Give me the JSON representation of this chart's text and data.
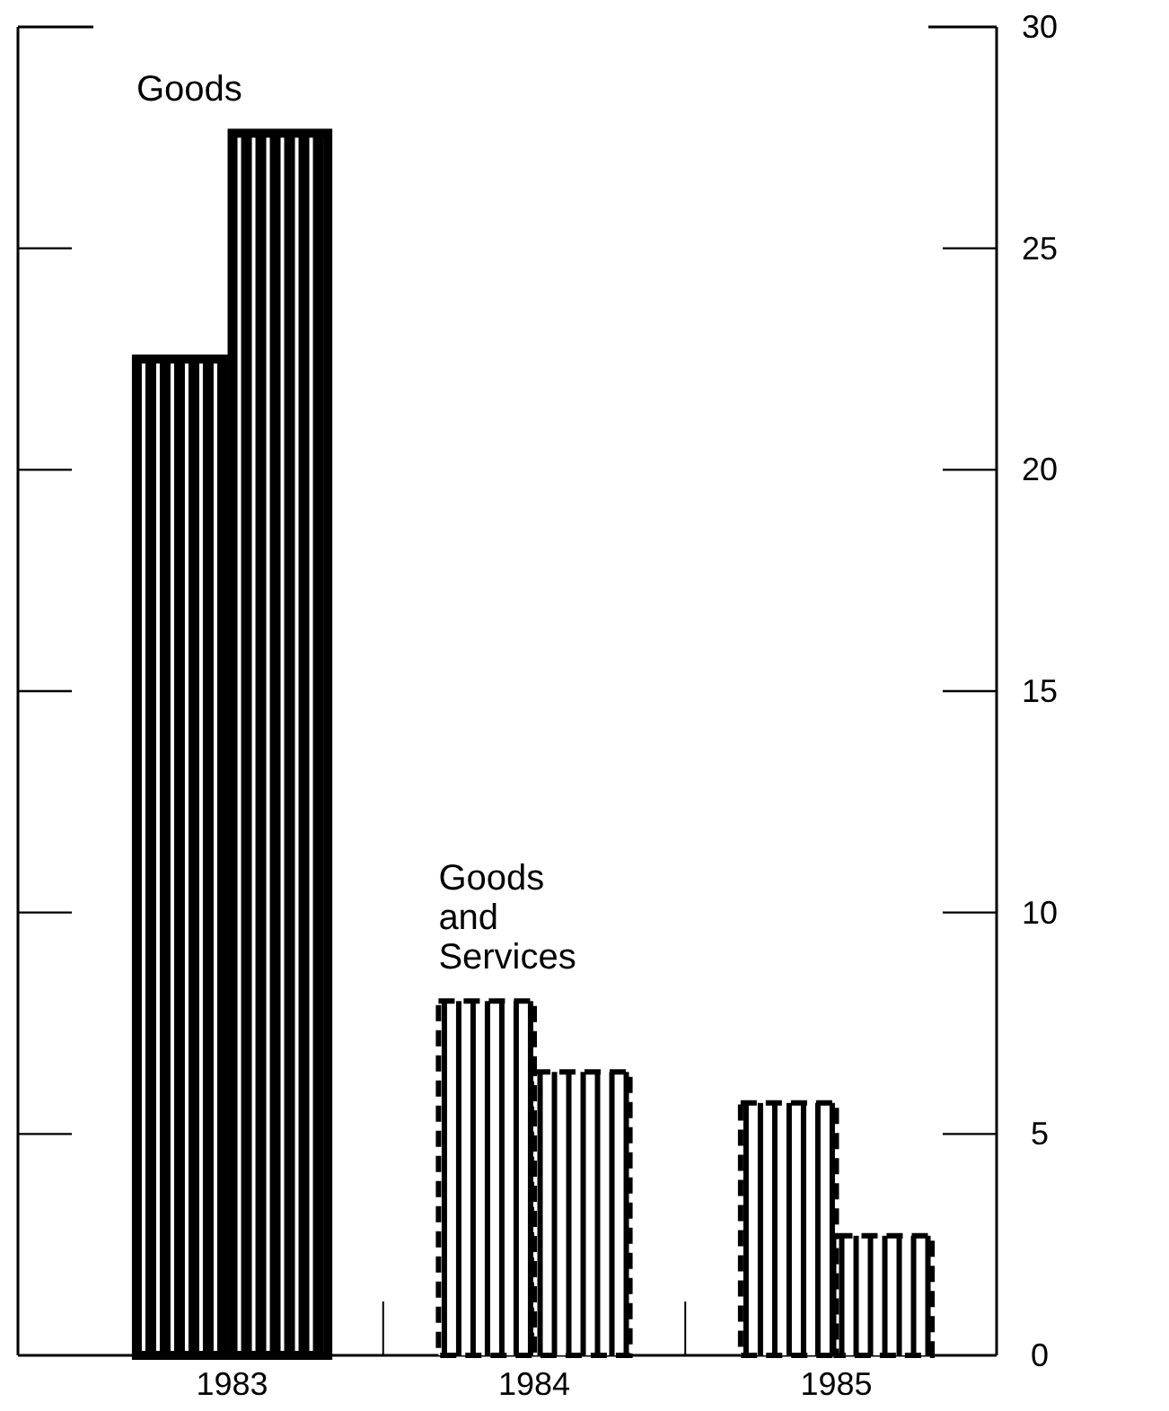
{
  "chart_data": {
    "type": "bar",
    "categories": [
      "1983",
      "1984",
      "1985"
    ],
    "series": [
      {
        "color": "#000000",
        "values": [
          22.5,
          null,
          null
        ]
      },
      {
        "color": "#000000",
        "values": [
          27.6,
          null,
          null
        ]
      },
      {
        "color": "#000000",
        "line_style": "dashed",
        "values": [
          null,
          8.0,
          5.7
        ]
      },
      {
        "color": "#000000",
        "line_style": "dashed",
        "values": [
          null,
          6.4,
          2.7
        ]
      }
    ],
    "ylim": [
      0,
      30
    ],
    "yticks": [
      0,
      5,
      10,
      15,
      20,
      25,
      30
    ],
    "annotations": [
      "Goods",
      "Goods and Services"
    ]
  }
}
